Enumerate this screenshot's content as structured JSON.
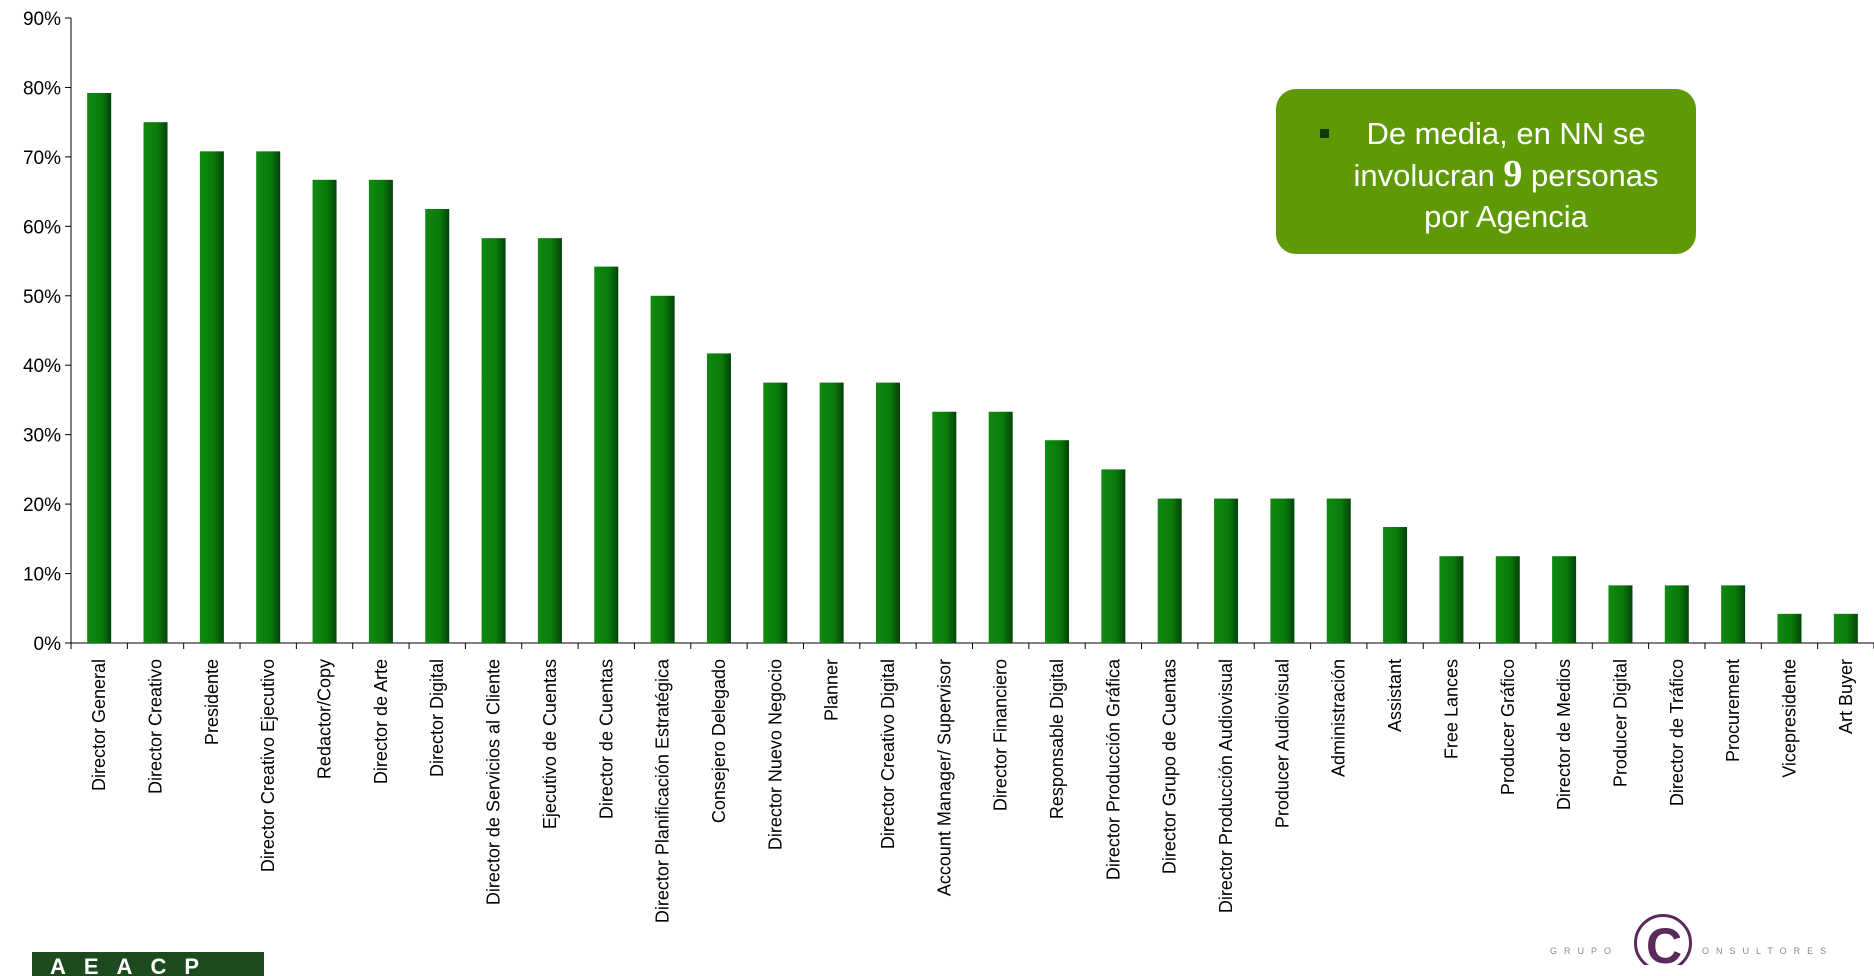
{
  "chart_data": {
    "type": "bar",
    "title": "",
    "xlabel": "",
    "ylabel": "",
    "ylim": [
      0,
      90
    ],
    "yticks": [
      "0%",
      "10%",
      "20%",
      "30%",
      "40%",
      "50%",
      "60%",
      "70%",
      "80%",
      "90%"
    ],
    "grid": false,
    "bar_color": "#0a7a0a",
    "categories": [
      "Director General",
      "Director Creativo",
      "Presidente",
      "Director Creativo Ejecutivo",
      "Redactor/Copy",
      "Director de Arte",
      "Director Digital",
      "Director de Servicios al Cliente",
      "Ejecutivo de Cuentas",
      "Director de Cuentas",
      "Director Planificación Estratégica",
      "Consejero Delegado",
      "Director Nuevo Negocio",
      "Planner",
      "Director Creativo Digital",
      "Account Manager/ Supervisor",
      "Director Financiero",
      "Responsable Digital",
      "Director Producción Gráfica",
      "Director Grupo de Cuentas",
      "Director Producción Audiovisual",
      "Producer Audiovisual",
      "Administración",
      "Assistant",
      "Free Lances",
      "Producer Gráfico",
      "Director de Medios",
      "Producer Digital",
      "Director de Tráfico",
      "Procurement",
      "Vicepresidente",
      "Art Buyer"
    ],
    "values": [
      79.2,
      75.0,
      70.8,
      70.8,
      66.7,
      66.7,
      62.5,
      58.3,
      58.3,
      54.2,
      50.0,
      41.7,
      37.5,
      37.5,
      37.5,
      33.3,
      33.3,
      29.2,
      25.0,
      20.8,
      20.8,
      20.8,
      20.8,
      16.7,
      12.5,
      12.5,
      12.5,
      8.3,
      8.3,
      8.3,
      4.2,
      4.2
    ]
  },
  "callout": {
    "line1": "De media, en NN se",
    "line2_pre": "involucran",
    "line2_num": "9",
    "line2_post": "personas",
    "line3": "por Agencia",
    "bg_color": "#5f9a06"
  },
  "logos": {
    "left_text": "AEACP",
    "right_prefix": "GRUPO",
    "right_letter": "C",
    "right_suffix": "ONSULTORES"
  }
}
